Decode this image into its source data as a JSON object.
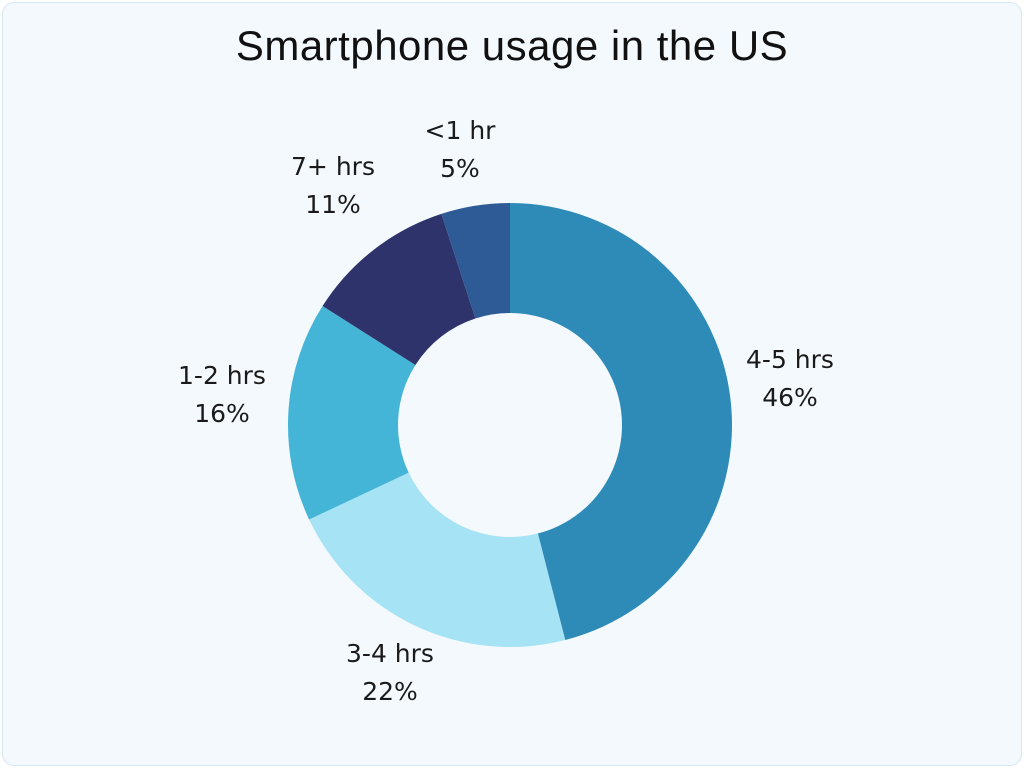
{
  "chart_data": {
    "type": "pie",
    "variant": "donut",
    "title": "Smartphone usage in the US",
    "slices": [
      {
        "label": "4-5 hrs",
        "value": 46,
        "value_label": "46%",
        "color": "#2e8bb8"
      },
      {
        "label": "3-4 hrs",
        "value": 22,
        "value_label": "22%",
        "color": "#a5e3f5"
      },
      {
        "label": "1-2 hrs",
        "value": 16,
        "value_label": "16%",
        "color": "#44b5d6"
      },
      {
        "label": "7+ hrs",
        "value": 11,
        "value_label": "11%",
        "color": "#2e336b"
      },
      {
        "label": "<1 hr",
        "value": 5,
        "value_label": "5%",
        "color": "#2e5b96"
      }
    ],
    "start": "top",
    "direction": "clockwise"
  }
}
